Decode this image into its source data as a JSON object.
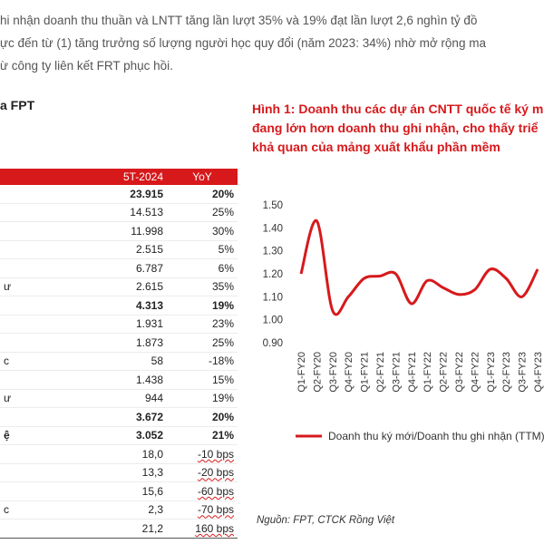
{
  "paragraph": {
    "lines": [
      "hi nhận doanh thu thuần và LNTT tăng lần lượt 35% và 19% đạt lần lượt 2,6 nghìn tỷ đồ",
      "ực đến từ (1) tăng trưởng số lượng người học quy đổi (năm 2023: 34%) nhờ mở rộng ma",
      "ừ công ty liên kết FRT phục hồi."
    ]
  },
  "left_title": "a FPT",
  "table": {
    "headers": [
      "",
      "5T-2024",
      "YoY"
    ],
    "rows": [
      {
        "label": "",
        "value": "23.915",
        "yoy": "20%",
        "bold": true
      },
      {
        "label": "",
        "value": "14.513",
        "yoy": "25%",
        "bold": false
      },
      {
        "label": "",
        "value": "11.998",
        "yoy": "30%",
        "bold": false
      },
      {
        "label": "",
        "value": "2.515",
        "yoy": "5%",
        "bold": false
      },
      {
        "label": "",
        "value": "6.787",
        "yoy": "6%",
        "bold": false
      },
      {
        "label": "ư",
        "value": "2.615",
        "yoy": "35%",
        "bold": false
      },
      {
        "label": "",
        "value": "4.313",
        "yoy": "19%",
        "bold": true
      },
      {
        "label": "",
        "value": "1.931",
        "yoy": "23%",
        "bold": false
      },
      {
        "label": "",
        "value": "1.873",
        "yoy": "25%",
        "bold": false
      },
      {
        "label": "c",
        "value": "58",
        "yoy": "-18%",
        "bold": false
      },
      {
        "label": "",
        "value": "1.438",
        "yoy": "15%",
        "bold": false
      },
      {
        "label": "ư",
        "value": "944",
        "yoy": "19%",
        "bold": false
      },
      {
        "label": "",
        "value": "3.672",
        "yoy": "20%",
        "bold": true
      },
      {
        "label": "ệ",
        "value": "3.052",
        "yoy": "21%",
        "bold": true
      },
      {
        "label": "",
        "value": "18,0",
        "yoy": "-10 bps",
        "bold": false
      },
      {
        "label": "",
        "value": "13,3",
        "yoy": "-20 bps",
        "bold": false
      },
      {
        "label": "",
        "value": "15,6",
        "yoy": "-60 bps",
        "bold": false
      },
      {
        "label": "c",
        "value": "2,3",
        "yoy": "-70 bps",
        "bold": false
      },
      {
        "label": "",
        "value": "21,2",
        "yoy": "160 bps",
        "bold": false
      }
    ]
  },
  "chart_title": {
    "lines": [
      "Hình 1: Doanh thu các dự án CNTT quốc tế ký m",
      "đang lớn hơn doanh thu ghi nhận, cho thấy triể",
      "khả quan của mảng xuất khẩu phần mềm"
    ]
  },
  "source": "Nguồn: FPT, CTCK Rồng Việt",
  "colors": {
    "accent": "#d7191c",
    "header_bg": "#d7191c"
  },
  "chart_data": {
    "type": "line",
    "title": "Hình 1: Doanh thu các dự án CNTT quốc tế ký m đang lớn hơn doanh thu ghi nhận, cho thấy triể khả quan của mảng xuất khẩu phần mềm",
    "x": [
      "Q1-FY20",
      "Q2-FY20",
      "Q3-FY20",
      "Q4-FY20",
      "Q1-FY21",
      "Q2-FY21",
      "Q3-FY21",
      "Q4-FY21",
      "Q1-FY22",
      "Q2-FY22",
      "Q3-FY22",
      "Q4-FY22",
      "Q1-FY23",
      "Q2-FY23",
      "Q3-FY23",
      "Q4-FY23"
    ],
    "series": [
      {
        "name": "Doanh thu ký mới/Doanh thu ghi nhận (TTM)",
        "color": "#d7191c",
        "values": [
          1.2,
          1.43,
          1.04,
          1.1,
          1.18,
          1.19,
          1.2,
          1.07,
          1.17,
          1.14,
          1.11,
          1.13,
          1.22,
          1.18,
          1.1,
          1.22
        ]
      }
    ],
    "y_ticks": [
      "0.90",
      "1.00",
      "1.10",
      "1.20",
      "1.30",
      "1.40",
      "1.50"
    ],
    "ylim": [
      0.9,
      1.5
    ],
    "grid": false,
    "legend_position": "bottom"
  }
}
